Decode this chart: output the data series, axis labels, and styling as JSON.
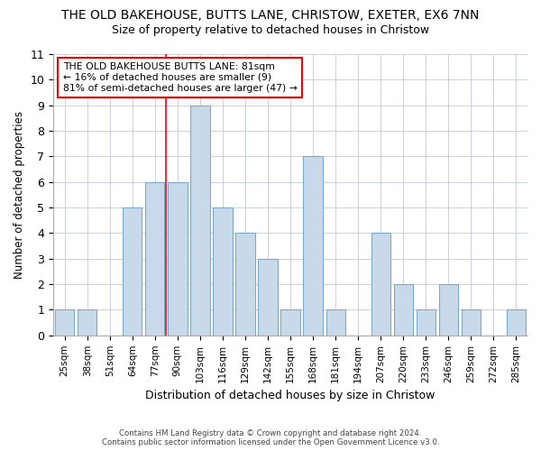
{
  "title": "THE OLD BAKEHOUSE, BUTTS LANE, CHRISTOW, EXETER, EX6 7NN",
  "subtitle": "Size of property relative to detached houses in Christow",
  "xlabel": "Distribution of detached houses by size in Christow",
  "ylabel": "Number of detached properties",
  "categories": [
    "25sqm",
    "38sqm",
    "51sqm",
    "64sqm",
    "77sqm",
    "90sqm",
    "103sqm",
    "116sqm",
    "129sqm",
    "142sqm",
    "155sqm",
    "168sqm",
    "181sqm",
    "194sqm",
    "207sqm",
    "220sqm",
    "233sqm",
    "246sqm",
    "259sqm",
    "272sqm",
    "285sqm"
  ],
  "values": [
    1,
    1,
    0,
    5,
    6,
    6,
    9,
    5,
    4,
    3,
    1,
    7,
    1,
    0,
    4,
    2,
    1,
    2,
    1,
    0,
    1
  ],
  "bar_color": "#c8daea",
  "bar_edge_color": "#7aaac8",
  "red_line_x": 4.5,
  "ylim": [
    0,
    11
  ],
  "yticks": [
    0,
    1,
    2,
    3,
    4,
    5,
    6,
    7,
    8,
    9,
    10,
    11
  ],
  "annotation_line1": "THE OLD BAKEHOUSE BUTTS LANE: 81sqm",
  "annotation_line2": "← 16% of detached houses are smaller (9)",
  "annotation_line3": "81% of semi-detached houses are larger (47) →",
  "footer1": "Contains HM Land Registry data © Crown copyright and database right 2024.",
  "footer2": "Contains public sector information licensed under the Open Government Licence v3.0.",
  "bg_color": "#ffffff",
  "plot_bg_color": "#ffffff",
  "grid_color": "#c0ccd8"
}
